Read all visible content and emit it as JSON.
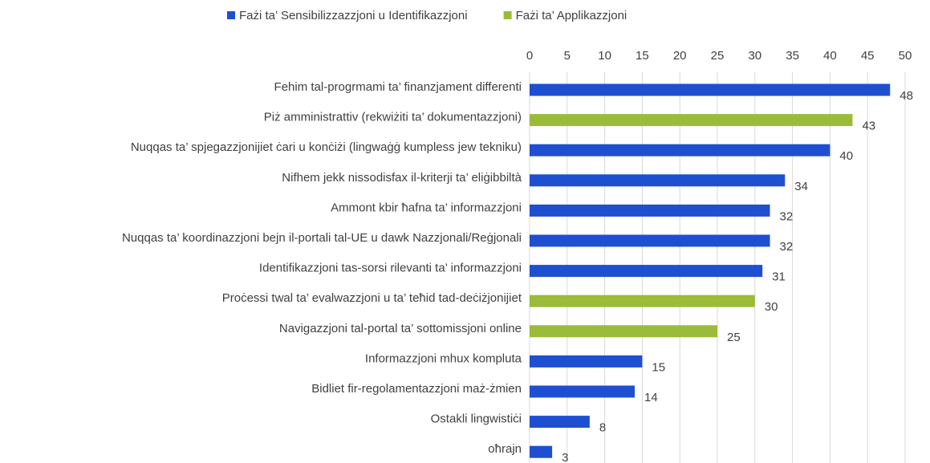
{
  "chart_data": {
    "type": "bar",
    "orientation": "horizontal",
    "categories": [
      "Fehim tal-progrmami ta’ finanzjament differenti",
      "Piż amministrattiv (rekwiżiti ta’ dokumentazzjoni)",
      "Nuqqas ta’ spjegazzjonijiet ċari u konċiżi (lingwaġġ kumpless jew tekniku)",
      "Nifhem jekk nissodisfax il-kriterji ta’ eliġibbiltà",
      "Ammont kbir ħafna ta’ informazzjoni",
      "Nuqqas ta’ koordinazzjoni bejn il-portali tal-UE u dawk Nazzjonali/Reġjonali",
      "Identifikazzjoni tas-sorsi rilevanti ta’ informazzjoni",
      "Proċessi twal ta’ evalwazzjoni u ta’ teħid tad-deċiżjonijiet",
      "Navigazzjoni tal-portal ta’ sottomissjoni online",
      "Informazzjoni mhux kompluta",
      "Bidliet fir-regolamentazzjoni maż-żmien",
      "Ostakli lingwistiċi",
      "oħrajn"
    ],
    "series": [
      {
        "name": "Fażi ta’ Sensibilizzazzjoni u Identifikazzjoni",
        "color": "#1f4fd1",
        "values": [
          48,
          null,
          40,
          34,
          32,
          32,
          31,
          null,
          null,
          15,
          14,
          8,
          3
        ]
      },
      {
        "name": "Fażi ta’ Applikazzjoni",
        "color": "#9bbb3b",
        "values": [
          null,
          43,
          null,
          null,
          null,
          null,
          null,
          30,
          25,
          null,
          null,
          null,
          null
        ]
      }
    ],
    "xlim": [
      0,
      50
    ],
    "xticks": [
      0,
      5,
      10,
      15,
      20,
      25,
      30,
      35,
      40,
      45,
      50
    ],
    "grid": true,
    "legend": "top"
  }
}
